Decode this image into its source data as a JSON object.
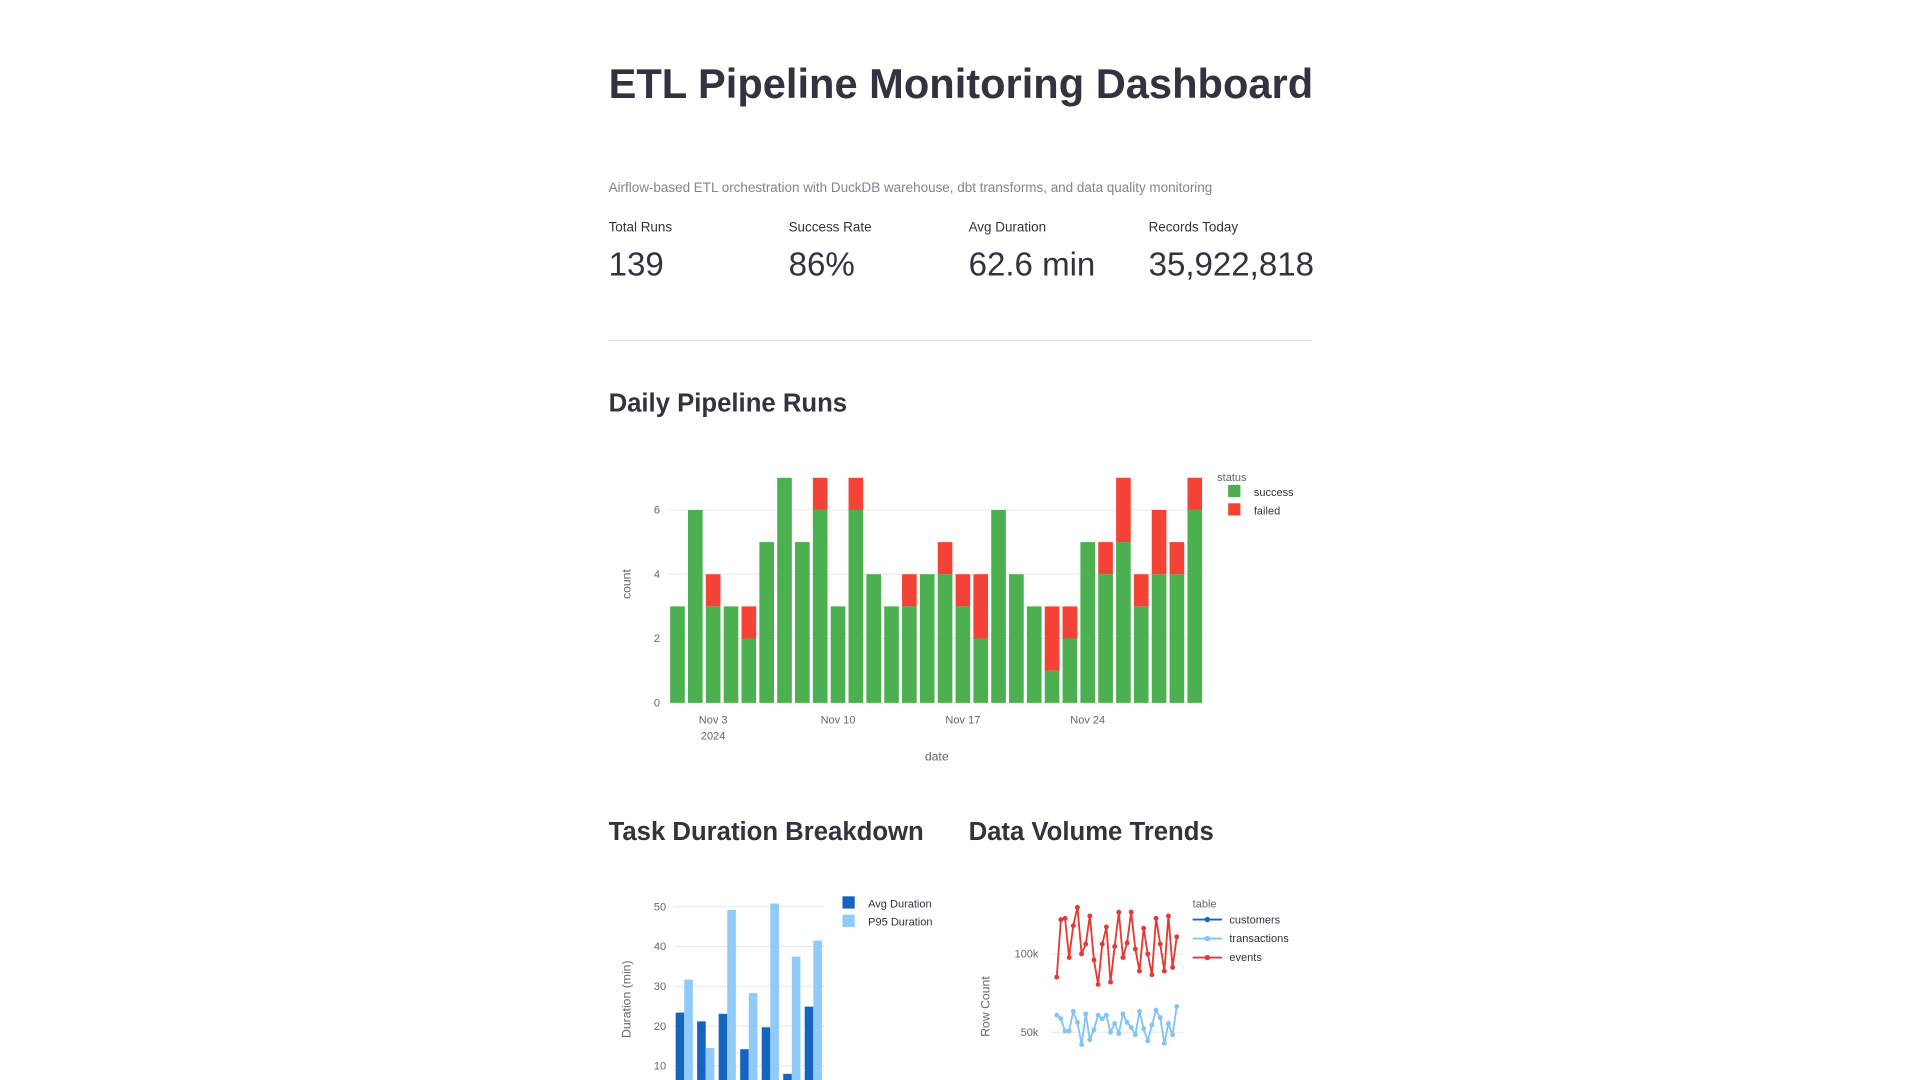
{
  "title": "ETL Pipeline Monitoring Dashboard",
  "subtitle": "Airflow-based ETL orchestration with DuckDB warehouse, dbt transforms, and data quality monitoring",
  "metrics": [
    {
      "label": "Total Runs",
      "value": "139"
    },
    {
      "label": "Success Rate",
      "value": "86%"
    },
    {
      "label": "Avg Duration",
      "value": "62.6 min"
    },
    {
      "label": "Records Today",
      "value": "35,922,818"
    }
  ],
  "chart_data": [
    {
      "type": "bar",
      "stacked": true,
      "title": "Daily Pipeline Runs",
      "x": [
        "2024-11-01",
        "2024-11-02",
        "2024-11-03",
        "2024-11-04",
        "2024-11-05",
        "2024-11-06",
        "2024-11-07",
        "2024-11-08",
        "2024-11-09",
        "2024-11-10",
        "2024-11-11",
        "2024-11-12",
        "2024-11-13",
        "2024-11-14",
        "2024-11-15",
        "2024-11-16",
        "2024-11-17",
        "2024-11-18",
        "2024-11-19",
        "2024-11-20",
        "2024-11-21",
        "2024-11-22",
        "2024-11-23",
        "2024-11-24",
        "2024-11-25",
        "2024-11-26",
        "2024-11-27",
        "2024-11-28",
        "2024-11-29",
        "2024-11-30"
      ],
      "series": [
        {
          "name": "success",
          "color": "#4caf50",
          "values": [
            3,
            6,
            3,
            3,
            2,
            5,
            7,
            5,
            6,
            3,
            6,
            4,
            3,
            3,
            4,
            4,
            3,
            2,
            6,
            4,
            3,
            1,
            2,
            5,
            4,
            5,
            3,
            4,
            4,
            6
          ]
        },
        {
          "name": "failed",
          "color": "#f44336",
          "values": [
            0,
            0,
            1,
            0,
            1,
            0,
            0,
            0,
            1,
            0,
            1,
            0,
            0,
            1,
            0,
            1,
            1,
            2,
            0,
            0,
            0,
            2,
            1,
            0,
            1,
            2,
            1,
            2,
            1,
            1
          ]
        }
      ],
      "xlim": [
        "2024-10-31T12:00",
        "2024-11-30T12:00"
      ],
      "xticks": [
        {
          "value": "2024-11-03",
          "label": "Nov 3"
        },
        {
          "value": "2024-11-10",
          "label": "Nov 10"
        },
        {
          "value": "2024-11-17",
          "label": "Nov 17"
        },
        {
          "value": "2024-11-24",
          "label": "Nov 24"
        }
      ],
      "xtick_year": {
        "value": "2024-11-03",
        "label": "2024"
      },
      "ylim": [
        0,
        7.35
      ],
      "yticks": [
        0,
        2,
        4,
        6
      ],
      "xlabel": "date",
      "ylabel": "count",
      "legend_title": "status",
      "grid": true
    },
    {
      "type": "bar",
      "title": "Task Duration Breakdown",
      "categories": [
        null,
        null,
        null,
        null,
        null,
        null,
        null
      ],
      "series": [
        {
          "name": "Avg Duration",
          "color": "#1565c0",
          "values": [
            23.4,
            21.2,
            23.1,
            14.2,
            19.7,
            8.0,
            24.9
          ]
        },
        {
          "name": "P95 Duration",
          "color": "#90caf9",
          "values": [
            31.7,
            14.5,
            49.2,
            28.3,
            50.8,
            37.5,
            41.5
          ]
        }
      ],
      "ylim": [
        0,
        53
      ],
      "yticks": [
        10,
        20,
        30,
        40,
        50
      ],
      "ylabel": "Duration (min)",
      "grid": true
    },
    {
      "type": "line",
      "title": "Data Volume Trends",
      "categories": [
        null,
        null,
        null,
        null,
        null,
        null,
        null,
        null,
        null,
        null,
        null,
        null,
        null,
        null,
        null,
        null,
        null,
        null,
        null,
        null,
        null,
        null,
        null,
        null,
        null,
        null,
        null,
        null,
        null,
        null
      ],
      "series": [
        {
          "name": "customers",
          "color": "#1565c0",
          "values": [
            null,
            null,
            null,
            null,
            null,
            null,
            null,
            null,
            null,
            null,
            null,
            null,
            null,
            null,
            null,
            null,
            null,
            null,
            null,
            null,
            null,
            null,
            null,
            null,
            null,
            null,
            null,
            null,
            null,
            null
          ]
        },
        {
          "name": "transactions",
          "color": "#81c4f5",
          "values": [
            60900,
            58600,
            50800,
            50800,
            63300,
            56300,
            42200,
            61700,
            45300,
            51600,
            60900,
            58600,
            60900,
            50000,
            55500,
            49200,
            61700,
            56300,
            53100,
            48400,
            63300,
            52300,
            44500,
            54700,
            64100,
            59400,
            43000,
            55500,
            48400,
            66400
          ]
        },
        {
          "name": "events",
          "color": "#e53935",
          "values": [
            85200,
            121900,
            122700,
            97700,
            118000,
            129700,
            100000,
            106300,
            124200,
            96100,
            80500,
            106300,
            117200,
            82000,
            104700,
            126600,
            97700,
            107000,
            126600,
            103100,
            89100,
            116400,
            100000,
            86700,
            122700,
            106300,
            89100,
            124200,
            91400,
            110900
          ]
        }
      ],
      "ylim": [
        0,
        134000
      ],
      "yticks": [
        {
          "value": 50000,
          "label": "50k"
        },
        {
          "value": 100000,
          "label": "100k"
        }
      ],
      "ylabel": "Row Count",
      "legend_title": "table",
      "grid": true
    }
  ]
}
